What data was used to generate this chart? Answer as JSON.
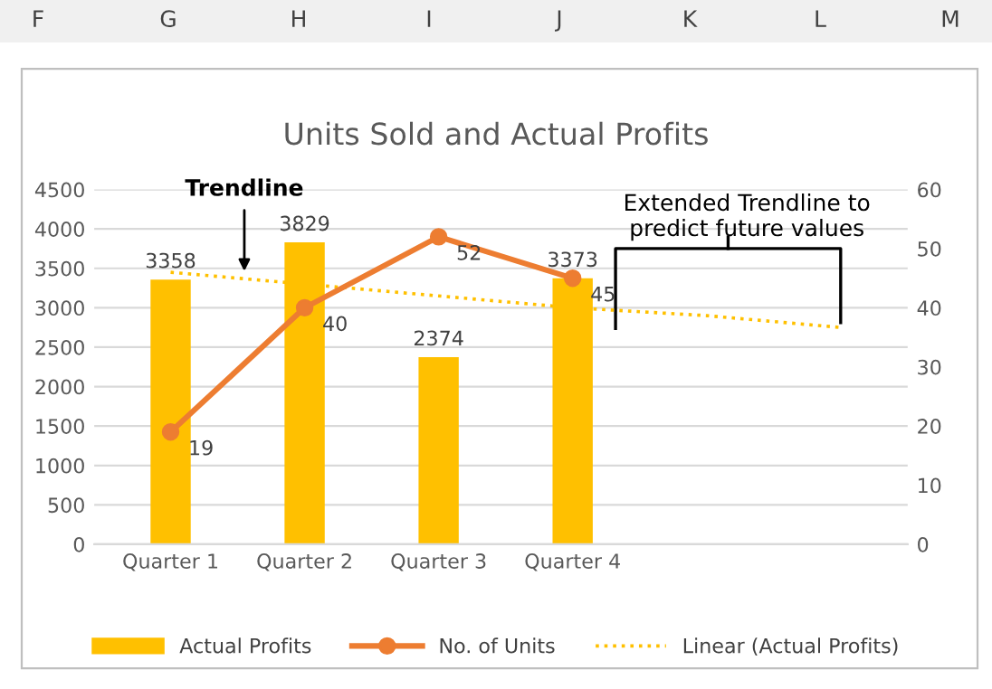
{
  "chart_data": {
    "type": "bar",
    "title": "Units Sold and Actual Profits",
    "categories": [
      "Quarter 1",
      "Quarter 2",
      "Quarter 3",
      "Quarter 4",
      null,
      null
    ],
    "series": [
      {
        "name": "Actual Profits",
        "color": "#ffc000",
        "values": [
          3358,
          3829,
          2374,
          3373,
          null,
          null
        ],
        "value_labels": [
          "3358",
          "3829",
          "2374",
          "3373",
          null,
          null
        ]
      },
      {
        "name": "No. of Units",
        "type": "line",
        "axis": "y2",
        "color": "#ed7d31",
        "marker": "circle",
        "values": [
          19,
          40,
          52,
          45,
          null,
          null
        ],
        "value_labels": [
          "19",
          "40",
          "52",
          "45",
          null,
          null
        ]
      },
      {
        "name": "Linear (Actual Profits)",
        "type": "line",
        "color": "#ffc000",
        "line_style": "dotted",
        "values": [
          3450,
          3300,
          3150,
          3000,
          2900,
          2750
        ]
      }
    ],
    "ylim": [
      0,
      4500
    ],
    "yticks": [
      0,
      500,
      1000,
      1500,
      2000,
      2500,
      3000,
      3500,
      4000,
      4500
    ],
    "y2lim": [
      0,
      60
    ],
    "y2ticks": [
      0,
      10,
      20,
      30,
      40,
      50,
      60
    ],
    "grid": "y",
    "legend": "bottom",
    "annotations": [
      {
        "text": "Trendline",
        "y": 3400
      },
      "Extended Trendline to predict future values",
      "F",
      "G",
      "H",
      "I",
      "J",
      "K",
      "L",
      "M"
    ]
  }
}
